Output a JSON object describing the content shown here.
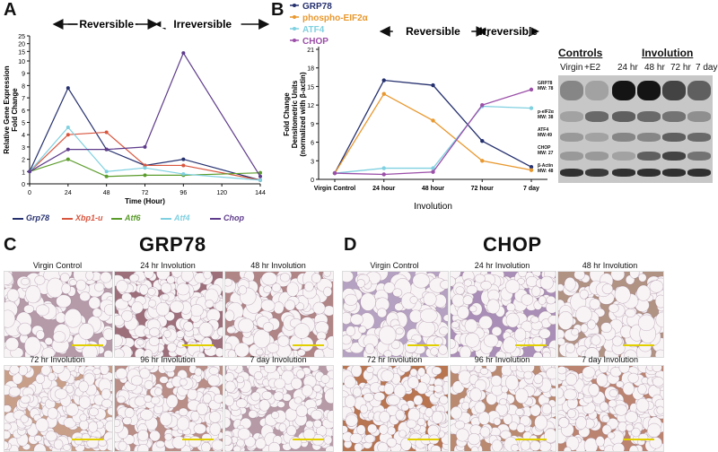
{
  "panels": {
    "A": "A",
    "B": "B",
    "C": "C",
    "D": "D"
  },
  "chart_a": {
    "type": "line",
    "phase_labels": [
      "Reversible",
      "Irreversible"
    ],
    "xlabel": "Time (Hour)",
    "ylabel_lines": [
      "Relative Gene Expression",
      "Fold Change"
    ],
    "x": [
      0,
      24,
      48,
      72,
      96,
      144
    ],
    "x_ticks": [
      "0",
      "24",
      "48",
      "72",
      "96",
      "120",
      "144"
    ],
    "y_ticks": [
      "0",
      "1",
      "2",
      "3",
      "4",
      "5",
      "6",
      "7",
      "8",
      "9",
      "10",
      "15",
      "20",
      "25"
    ],
    "series": [
      {
        "name": "Grp78",
        "color": "#25306e",
        "values": [
          1,
          7.8,
          2.8,
          1.5,
          2.0,
          0.3
        ]
      },
      {
        "name": "Xbp1-u",
        "color": "#d8553e",
        "values": [
          1,
          4.0,
          4.2,
          1.5,
          1.5,
          0.3
        ]
      },
      {
        "name": "Atf6",
        "color": "#5a9b2a",
        "values": [
          1,
          2.0,
          0.6,
          0.7,
          0.7,
          0.9
        ]
      },
      {
        "name": "Atf4",
        "color": "#7fd0e0",
        "values": [
          1,
          4.6,
          1.0,
          1.3,
          0.8,
          0.3
        ]
      },
      {
        "name": "Chop",
        "color": "#5e3b8b",
        "values": [
          1,
          2.8,
          2.8,
          3.0,
          14.0,
          0.6
        ]
      }
    ]
  },
  "chart_b": {
    "type": "line",
    "phase_labels": [
      "Reversible",
      "Irreversible"
    ],
    "xlabel": "Involution",
    "ylabel_lines": [
      "Fold Change",
      "Densitometric Units",
      "(normalized with β-actin)"
    ],
    "categories": [
      "Virgin Control",
      "24 hour",
      "48 hour",
      "72 hour",
      "7 day"
    ],
    "y_ticks": [
      "0",
      "3",
      "6",
      "9",
      "12",
      "15",
      "18",
      "21"
    ],
    "series": [
      {
        "name": "GRP78",
        "color": "#25306e",
        "values": [
          1,
          16.0,
          15.2,
          6.2,
          2.0
        ]
      },
      {
        "name": "phospho-EIF2α",
        "color": "#e8982e",
        "values": [
          1,
          13.8,
          9.5,
          3.0,
          1.5
        ]
      },
      {
        "name": "ATF4",
        "color": "#7fd0e0",
        "values": [
          1,
          1.8,
          1.8,
          11.8,
          11.5
        ]
      },
      {
        "name": "CHOP",
        "color": "#9b4fa8",
        "values": [
          1,
          0.8,
          1.2,
          12.0,
          14.5
        ]
      }
    ]
  },
  "blot": {
    "controls_title": "Controls",
    "involution_title": "Involution",
    "lanes": [
      "Virgin",
      "+E2",
      "24 hr",
      "48 hr",
      "72 hr",
      "7 day"
    ],
    "proteins": [
      {
        "name": "GRP78",
        "mw": "MW: 78"
      },
      {
        "name": "p-eIF2α",
        "mw": "MW: 38"
      },
      {
        "name": "ATF4",
        "mw": "MW:49"
      },
      {
        "name": "CHOP",
        "mw": "MW: 27"
      },
      {
        "name": "β-Actin",
        "mw": "MW: 48"
      }
    ]
  },
  "grp78_title": "GRP78",
  "chop_title": "CHOP",
  "grp78_captions": [
    "Virgin Control",
    "24 hr Involution",
    "48 hr Involution",
    "72 hr Involution",
    "96 hr Involution",
    "7 day Involution"
  ],
  "chop_captions": [
    "Virgin Control",
    "24 hr Involution",
    "48 hr Involution",
    "72 hr Involution",
    "96 hr Involution",
    "7 day Involution"
  ]
}
